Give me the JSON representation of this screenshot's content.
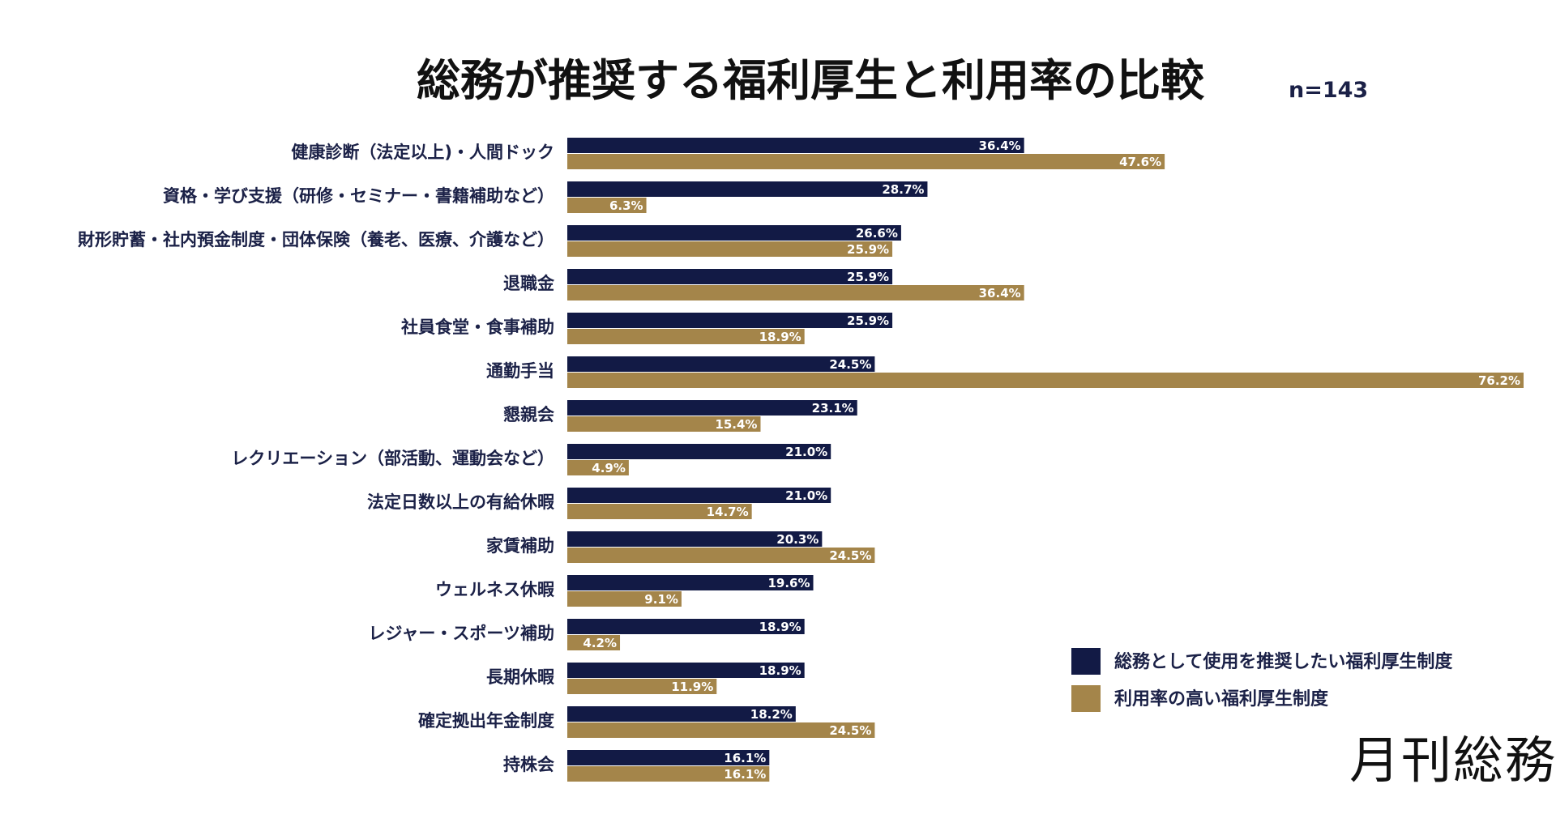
{
  "chart_data": {
    "type": "bar",
    "orientation": "horizontal",
    "title": "総務が推奨する福利厚生と利用率の比較",
    "sample_size": "n=143",
    "categories": [
      "健康診断（法定以上)・人間ドック",
      "資格・学び支援（研修・セミナー・書籍補助など）",
      "財形貯蓄・社内預金制度・団体保険（養老、医療、介護など）",
      "退職金",
      "社員食堂・食事補助",
      "通勤手当",
      "懇親会",
      "レクリエーション（部活動、運動会など）",
      "法定日数以上の有給休暇",
      "家賃補助",
      "ウェルネス休暇",
      "レジャー・スポーツ補助",
      "長期休暇",
      "確定拠出年金制度",
      "持株会"
    ],
    "series": [
      {
        "name": "総務として使用を推奨したい福利厚生制度",
        "color": "#121a45",
        "values": [
          36.4,
          28.7,
          26.6,
          25.9,
          25.9,
          24.5,
          23.1,
          21.0,
          21.0,
          20.3,
          19.6,
          18.9,
          18.9,
          18.2,
          16.1
        ]
      },
      {
        "name": "利用率の高い福利厚生制度",
        "color": "#a4854a",
        "values": [
          47.6,
          6.3,
          25.9,
          36.4,
          18.9,
          76.2,
          15.4,
          4.9,
          14.7,
          24.5,
          9.1,
          4.2,
          11.9,
          24.5,
          16.1
        ]
      }
    ],
    "value_suffix": "%",
    "legend_position": "bottom-right",
    "grid": false
  },
  "brand": {
    "text": "月刊総務"
  }
}
